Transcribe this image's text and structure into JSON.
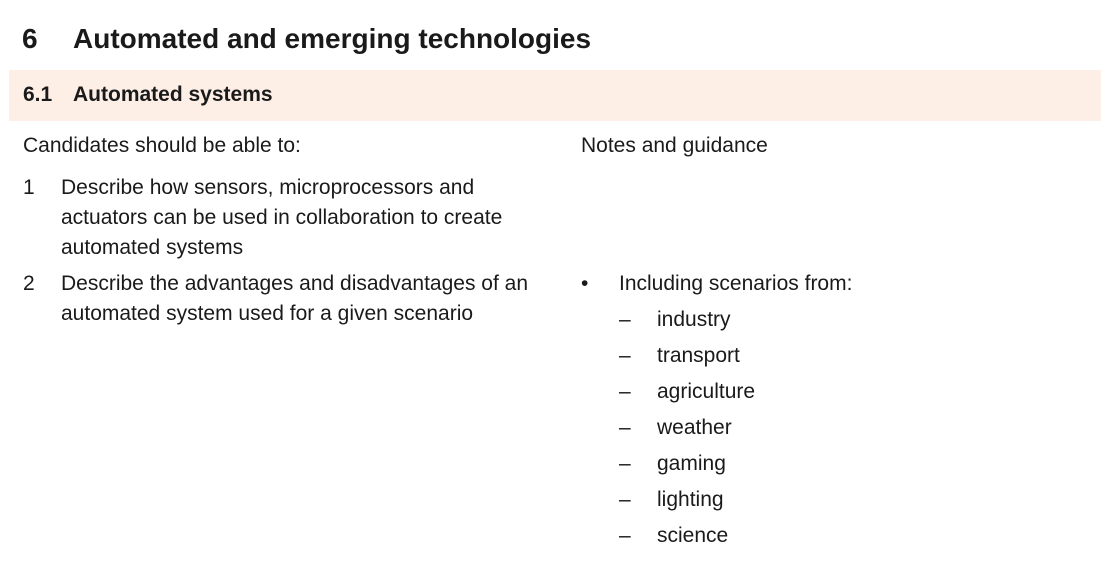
{
  "section": {
    "number": "6",
    "title": "Automated and emerging technologies"
  },
  "subsection": {
    "number": "6.1",
    "title": "Automated systems"
  },
  "columns": {
    "left_header": "Candidates should be able to:",
    "right_header": "Notes and guidance"
  },
  "objectives": [
    {
      "number": "1",
      "text": "Describe how sensors, microprocessors and actuators can be used in collaboration to create automated systems"
    },
    {
      "number": "2",
      "text": "Describe the advantages and disadvantages of an automated system used for a given scenario"
    }
  ],
  "guidance": {
    "bullet_symbol": "•",
    "bullet_text": "Including scenarios from:",
    "dash_symbol": "–",
    "scenarios": [
      "industry",
      "transport",
      "agriculture",
      "weather",
      "gaming",
      "lighting",
      "science"
    ]
  }
}
